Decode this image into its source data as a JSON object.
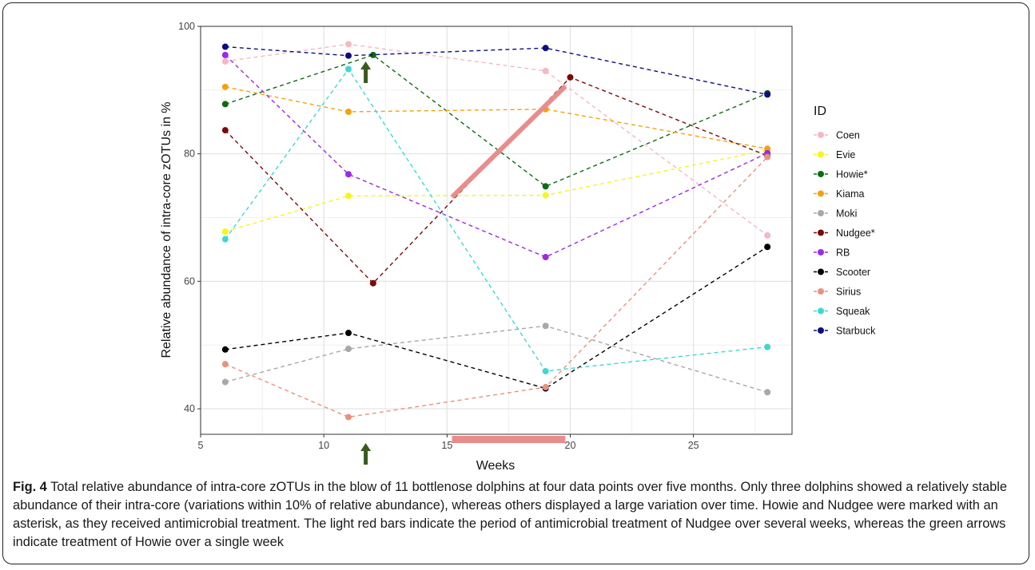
{
  "chart_data": {
    "type": "line",
    "x": [
      6,
      11,
      12,
      19,
      28
    ],
    "xlabel": "Weeks",
    "ylabel": "Relative abundance of intra-core zOTUs in %",
    "xlim": [
      5,
      29
    ],
    "ylim": [
      36,
      100
    ],
    "x_ticks": [
      "5",
      "10",
      "15",
      "20",
      "25"
    ],
    "y_ticks": [
      "40",
      "60",
      "80",
      "100"
    ],
    "grid": true,
    "line_style": "dashed",
    "legend": {
      "title": "ID",
      "placement": "right"
    },
    "series": [
      {
        "name": "Coen",
        "color": "#F4B8C4",
        "points": [
          [
            6,
            94.5
          ],
          [
            11,
            97.2
          ],
          [
            19,
            93.0
          ],
          [
            28,
            67.2
          ]
        ]
      },
      {
        "name": "Evie",
        "color": "#F5F520",
        "points": [
          [
            6,
            67.8
          ],
          [
            11,
            73.4
          ],
          [
            19,
            73.5
          ],
          [
            28,
            80.6
          ]
        ]
      },
      {
        "name": "Howie*",
        "color": "#0E6B12",
        "points": [
          [
            6,
            87.8
          ],
          [
            12,
            95.5
          ],
          [
            19,
            74.9
          ],
          [
            28,
            89.5
          ]
        ]
      },
      {
        "name": "Kiama",
        "color": "#F5A10F",
        "points": [
          [
            6,
            90.5
          ],
          [
            11,
            86.6
          ],
          [
            19,
            87.0
          ],
          [
            28,
            80.8
          ]
        ]
      },
      {
        "name": "Moki",
        "color": "#A8A8A8",
        "points": [
          [
            6,
            44.2
          ],
          [
            11,
            49.4
          ],
          [
            19,
            53.0
          ],
          [
            28,
            42.6
          ]
        ]
      },
      {
        "name": "Nudgee*",
        "color": "#7A0A0A",
        "points": [
          [
            6,
            83.7
          ],
          [
            12,
            59.7
          ],
          [
            20,
            92.0
          ],
          [
            28,
            79.7
          ]
        ]
      },
      {
        "name": "RB",
        "color": "#9A2BE2",
        "points": [
          [
            6,
            95.5
          ],
          [
            11,
            76.8
          ],
          [
            19,
            63.8
          ],
          [
            28,
            80.1
          ]
        ]
      },
      {
        "name": "Scooter",
        "color": "#000000",
        "points": [
          [
            6,
            49.3
          ],
          [
            11,
            51.9
          ],
          [
            19,
            43.2
          ],
          [
            28,
            65.4
          ]
        ]
      },
      {
        "name": "Sirius",
        "color": "#E8927E",
        "points": [
          [
            6,
            47.0
          ],
          [
            11,
            38.7
          ],
          [
            19,
            43.4
          ],
          [
            28,
            79.5
          ]
        ]
      },
      {
        "name": "Squeak",
        "color": "#3ED8D0",
        "points": [
          [
            6,
            66.6
          ],
          [
            11,
            93.3
          ],
          [
            19,
            45.9
          ],
          [
            28,
            49.7
          ]
        ]
      },
      {
        "name": "Starbuck",
        "color": "#0D0D80",
        "points": [
          [
            6,
            96.8
          ],
          [
            11,
            95.4
          ],
          [
            19,
            96.6
          ],
          [
            28,
            89.3
          ]
        ]
      }
    ],
    "annotations": {
      "treatment_bar_color": "#E88C8C",
      "treatment_line_from": [
        15.2,
        73.2
      ],
      "treatment_line_to": [
        19.8,
        90.6
      ],
      "treatment_bar_x_range": [
        15.2,
        19.8
      ],
      "arrow_color": "#3A5A1E",
      "arrow_x": 11.7
    }
  },
  "caption": {
    "label": "Fig. 4",
    "text": " Total relative abundance of intra-core zOTUs in the blow of 11 bottlenose dolphins at four data points over five months. Only three dolphins showed a relatively stable abundance of their intra-core (variations within 10% of relative abundance), whereas others displayed a large variation over time. Howie and Nudgee were marked with an asterisk, as they received antimicrobial treatment. The light red bars indicate the period of antimicrobial treatment of Nudgee over several weeks, whereas the green arrows indicate treatment of Howie over a single week"
  }
}
